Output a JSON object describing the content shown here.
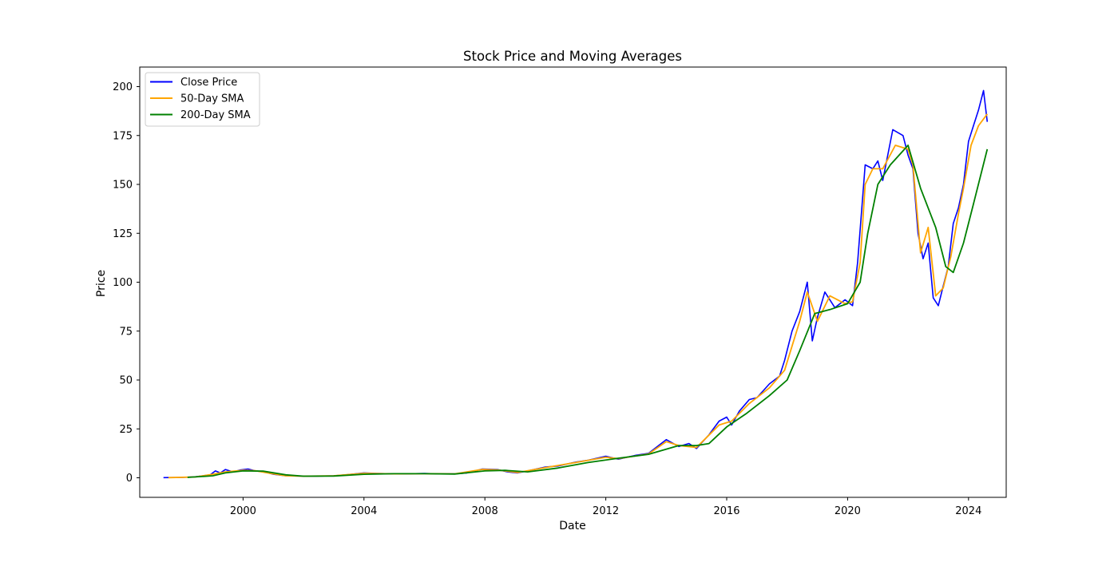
{
  "chart_data": {
    "type": "line",
    "title": "Stock Price and Moving Averages",
    "xlabel": "Date",
    "ylabel": "Price",
    "xlim": [
      "1996-08-01",
      "2025-04-01"
    ],
    "ylim": [
      -10,
      210
    ],
    "xticks": [
      {
        "date": "2000-01-01",
        "label": "2000"
      },
      {
        "date": "2004-01-01",
        "label": "2004"
      },
      {
        "date": "2008-01-01",
        "label": "2008"
      },
      {
        "date": "2012-01-01",
        "label": "2012"
      },
      {
        "date": "2016-01-01",
        "label": "2016"
      },
      {
        "date": "2020-01-01",
        "label": "2020"
      },
      {
        "date": "2024-01-01",
        "label": "2024"
      }
    ],
    "yticks": [
      0,
      25,
      50,
      75,
      100,
      125,
      150,
      175,
      200
    ],
    "grid": false,
    "legend_position": "upper-left",
    "series": [
      {
        "name": "Close Price",
        "color": "#0000ff",
        "points": [
          [
            "1997-05-15",
            0.1
          ],
          [
            "1998-01-01",
            0.2
          ],
          [
            "1998-06-01",
            0.5
          ],
          [
            "1998-12-01",
            1.5
          ],
          [
            "1999-02-01",
            3.5
          ],
          [
            "1999-04-01",
            2.5
          ],
          [
            "1999-06-01",
            4.2
          ],
          [
            "1999-09-01",
            3.0
          ],
          [
            "1999-12-01",
            4.0
          ],
          [
            "2000-03-01",
            4.5
          ],
          [
            "2000-06-01",
            3.5
          ],
          [
            "2000-09-01",
            3.2
          ],
          [
            "2001-01-01",
            1.8
          ],
          [
            "2001-06-01",
            1.0
          ],
          [
            "2002-01-01",
            0.8
          ],
          [
            "2002-06-01",
            0.8
          ],
          [
            "2003-01-01",
            1.0
          ],
          [
            "2003-06-01",
            1.5
          ],
          [
            "2004-01-01",
            2.5
          ],
          [
            "2004-06-01",
            2.2
          ],
          [
            "2005-01-01",
            2.0
          ],
          [
            "2005-06-01",
            2.0
          ],
          [
            "2006-01-01",
            2.2
          ],
          [
            "2006-06-01",
            2.0
          ],
          [
            "2007-01-01",
            2.0
          ],
          [
            "2007-06-01",
            2.5
          ],
          [
            "2007-12-01",
            4.5
          ],
          [
            "2008-06-01",
            4.2
          ],
          [
            "2008-10-01",
            3.0
          ],
          [
            "2009-02-01",
            2.5
          ],
          [
            "2009-06-01",
            3.5
          ],
          [
            "2010-01-01",
            5.5
          ],
          [
            "2010-06-01",
            6.0
          ],
          [
            "2011-01-01",
            8.0
          ],
          [
            "2011-06-01",
            9.0
          ],
          [
            "2012-01-01",
            11.0
          ],
          [
            "2012-06-01",
            9.5
          ],
          [
            "2013-01-01",
            11.5
          ],
          [
            "2013-06-01",
            12.5
          ],
          [
            "2014-01-01",
            19.5
          ],
          [
            "2014-06-01",
            16.0
          ],
          [
            "2014-10-01",
            17.5
          ],
          [
            "2015-01-01",
            15.0
          ],
          [
            "2015-06-01",
            22.0
          ],
          [
            "2015-10-01",
            29.0
          ],
          [
            "2016-01-01",
            31.0
          ],
          [
            "2016-03-01",
            27.0
          ],
          [
            "2016-06-01",
            34.0
          ],
          [
            "2016-10-01",
            40.0
          ],
          [
            "2017-01-01",
            41.0
          ],
          [
            "2017-06-01",
            48.0
          ],
          [
            "2017-10-01",
            52.0
          ],
          [
            "2017-12-01",
            60.0
          ],
          [
            "2018-03-01",
            75.0
          ],
          [
            "2018-06-01",
            85.0
          ],
          [
            "2018-09-01",
            100.0
          ],
          [
            "2018-11-01",
            70.0
          ],
          [
            "2019-01-01",
            82.0
          ],
          [
            "2019-04-01",
            95.0
          ],
          [
            "2019-08-01",
            87.0
          ],
          [
            "2019-12-01",
            91.0
          ],
          [
            "2020-03-01",
            88.0
          ],
          [
            "2020-05-01",
            110.0
          ],
          [
            "2020-08-01",
            160.0
          ],
          [
            "2020-11-01",
            158.0
          ],
          [
            "2021-01-01",
            162.0
          ],
          [
            "2021-03-01",
            152.0
          ],
          [
            "2021-07-01",
            178.0
          ],
          [
            "2021-11-01",
            175.0
          ],
          [
            "2022-01-01",
            165.0
          ],
          [
            "2022-03-01",
            158.0
          ],
          [
            "2022-05-01",
            125.0
          ],
          [
            "2022-07-01",
            112.0
          ],
          [
            "2022-09-01",
            120.0
          ],
          [
            "2022-11-01",
            92.0
          ],
          [
            "2023-01-01",
            88.0
          ],
          [
            "2023-03-01",
            98.0
          ],
          [
            "2023-05-01",
            108.0
          ],
          [
            "2023-07-01",
            130.0
          ],
          [
            "2023-09-01",
            138.0
          ],
          [
            "2023-11-01",
            150.0
          ],
          [
            "2024-01-01",
            172.0
          ],
          [
            "2024-03-01",
            180.0
          ],
          [
            "2024-05-01",
            188.0
          ],
          [
            "2024-07-01",
            198.0
          ],
          [
            "2024-08-15",
            182.0
          ]
        ]
      },
      {
        "name": "50-Day SMA",
        "color": "#ffa500",
        "points": [
          [
            "1997-07-15",
            0.1
          ],
          [
            "1998-06-01",
            0.4
          ],
          [
            "1999-01-01",
            1.8
          ],
          [
            "1999-06-01",
            3.0
          ],
          [
            "2000-01-01",
            3.8
          ],
          [
            "2000-06-01",
            3.6
          ],
          [
            "2001-01-01",
            2.0
          ],
          [
            "2001-06-01",
            1.0
          ],
          [
            "2002-01-01",
            0.8
          ],
          [
            "2003-01-01",
            1.0
          ],
          [
            "2004-01-01",
            2.3
          ],
          [
            "2005-01-01",
            2.0
          ],
          [
            "2006-01-01",
            2.1
          ],
          [
            "2007-01-01",
            2.0
          ],
          [
            "2007-12-01",
            4.3
          ],
          [
            "2008-06-01",
            4.0
          ],
          [
            "2009-02-01",
            2.7
          ],
          [
            "2010-01-01",
            5.2
          ],
          [
            "2011-01-01",
            7.8
          ],
          [
            "2012-01-01",
            10.5
          ],
          [
            "2012-06-01",
            9.8
          ],
          [
            "2013-06-01",
            12.2
          ],
          [
            "2014-01-01",
            18.5
          ],
          [
            "2014-06-01",
            16.5
          ],
          [
            "2015-01-01",
            15.5
          ],
          [
            "2015-10-01",
            27.0
          ],
          [
            "2016-03-01",
            29.0
          ],
          [
            "2016-10-01",
            38.0
          ],
          [
            "2017-06-01",
            46.0
          ],
          [
            "2017-12-01",
            55.0
          ],
          [
            "2018-06-01",
            80.0
          ],
          [
            "2018-09-01",
            95.0
          ],
          [
            "2019-01-01",
            80.0
          ],
          [
            "2019-06-01",
            93.0
          ],
          [
            "2019-12-01",
            89.0
          ],
          [
            "2020-03-01",
            90.0
          ],
          [
            "2020-06-01",
            110.0
          ],
          [
            "2020-08-01",
            150.0
          ],
          [
            "2020-11-01",
            158.0
          ],
          [
            "2021-03-01",
            158.0
          ],
          [
            "2021-08-01",
            170.0
          ],
          [
            "2022-01-01",
            168.0
          ],
          [
            "2022-03-01",
            160.0
          ],
          [
            "2022-06-01",
            115.0
          ],
          [
            "2022-09-01",
            128.0
          ],
          [
            "2022-12-01",
            93.0
          ],
          [
            "2023-03-01",
            97.0
          ],
          [
            "2023-06-01",
            113.0
          ],
          [
            "2023-09-01",
            135.0
          ],
          [
            "2023-11-01",
            148.0
          ],
          [
            "2024-02-01",
            170.0
          ],
          [
            "2024-05-01",
            180.0
          ],
          [
            "2024-08-15",
            186.0
          ]
        ]
      },
      {
        "name": "200-Day SMA",
        "color": "#008000",
        "points": [
          [
            "1998-03-01",
            0.2
          ],
          [
            "1999-01-01",
            1.0
          ],
          [
            "1999-06-01",
            2.5
          ],
          [
            "2000-01-01",
            3.5
          ],
          [
            "2000-09-01",
            3.4
          ],
          [
            "2001-06-01",
            1.5
          ],
          [
            "2002-01-01",
            0.8
          ],
          [
            "2003-01-01",
            0.9
          ],
          [
            "2004-01-01",
            1.8
          ],
          [
            "2005-01-01",
            2.1
          ],
          [
            "2006-01-01",
            2.1
          ],
          [
            "2007-01-01",
            1.9
          ],
          [
            "2008-01-01",
            3.5
          ],
          [
            "2008-09-01",
            3.8
          ],
          [
            "2009-06-01",
            3.0
          ],
          [
            "2010-06-01",
            5.0
          ],
          [
            "2011-06-01",
            7.8
          ],
          [
            "2012-06-01",
            10.0
          ],
          [
            "2013-06-01",
            12.0
          ],
          [
            "2014-06-01",
            16.5
          ],
          [
            "2015-01-01",
            16.5
          ],
          [
            "2015-06-01",
            17.5
          ],
          [
            "2016-01-01",
            26.0
          ],
          [
            "2016-09-01",
            33.0
          ],
          [
            "2017-06-01",
            42.0
          ],
          [
            "2018-01-01",
            50.0
          ],
          [
            "2018-06-01",
            65.0
          ],
          [
            "2018-12-01",
            84.0
          ],
          [
            "2019-06-01",
            86.0
          ],
          [
            "2020-01-01",
            89.0
          ],
          [
            "2020-06-01",
            100.0
          ],
          [
            "2020-09-01",
            125.0
          ],
          [
            "2021-01-01",
            150.0
          ],
          [
            "2021-06-01",
            160.0
          ],
          [
            "2022-01-01",
            170.0
          ],
          [
            "2022-06-01",
            148.0
          ],
          [
            "2022-12-01",
            128.0
          ],
          [
            "2023-04-01",
            108.0
          ],
          [
            "2023-07-01",
            105.0
          ],
          [
            "2023-11-01",
            120.0
          ],
          [
            "2024-03-01",
            140.0
          ],
          [
            "2024-08-15",
            168.0
          ]
        ]
      }
    ]
  }
}
